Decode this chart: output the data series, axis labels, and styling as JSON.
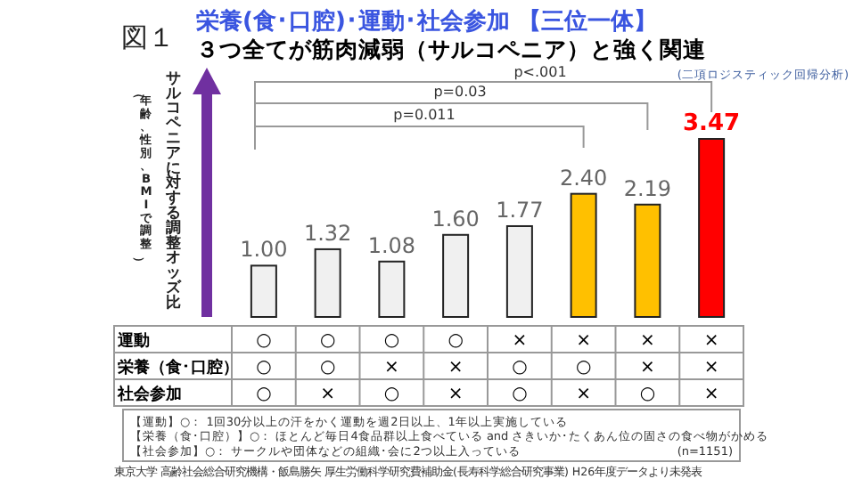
{
  "chart_data": {
    "type": "bar",
    "title": "栄養(食･口腔)･運動･社会参加 【三位一体】",
    "subtitle": "３つ全てが筋肉減弱（サルコペニア）と強く関連",
    "ylabel": "サルコペニアに対する調整オッズ比",
    "categories": [
      "○\n○\n○",
      "○\n○\n×",
      "○\n×\n○",
      "○\n×\n×",
      "×\n○\n○",
      "×\n○\n×",
      "×\n×\n○",
      "×\n×\n×"
    ],
    "values": [
      1.0,
      1.32,
      1.08,
      1.6,
      1.77,
      2.4,
      2.19,
      3.47
    ],
    "colors": [
      "#f0f0f0",
      "#f0f0f0",
      "#f0f0f0",
      "#f0f0f0",
      "#f0f0f0",
      "#ffc000",
      "#ffc000",
      "#ff0000"
    ],
    "value_labels": [
      "1.00",
      "1.32",
      "1.08",
      "1.60",
      "1.77",
      "2.40",
      "2.19",
      "3.47"
    ],
    "annotations": [
      "図１",
      "運動",
      "栄養（食･口腔）",
      "社会参加",
      "p=0.011",
      "p=0.03",
      "p<.001",
      "(二項ロジスティック回帰分析)",
      "【運動】○： 1回30分以上の汗をかく運動を週2日以上、1年以上実施している",
      "【栄養（食･口腔）】○： ほとんど毎日4食品群以上食べている and さきいか･たくあん位の固さの食べ物がかめる",
      "【社会参加】○： サークルや団体などの組織･会に2つ以上入っている",
      "(n=1151)",
      "東京大学 高齢社会総合研究機構・飯島勝矢 厚生労働科学研究費補助金(長寿科学総合研究事業) H26年度データより未発表",
      "（年齢、性別、BMIで調整）"
    ],
    "relative": false
  }
}
